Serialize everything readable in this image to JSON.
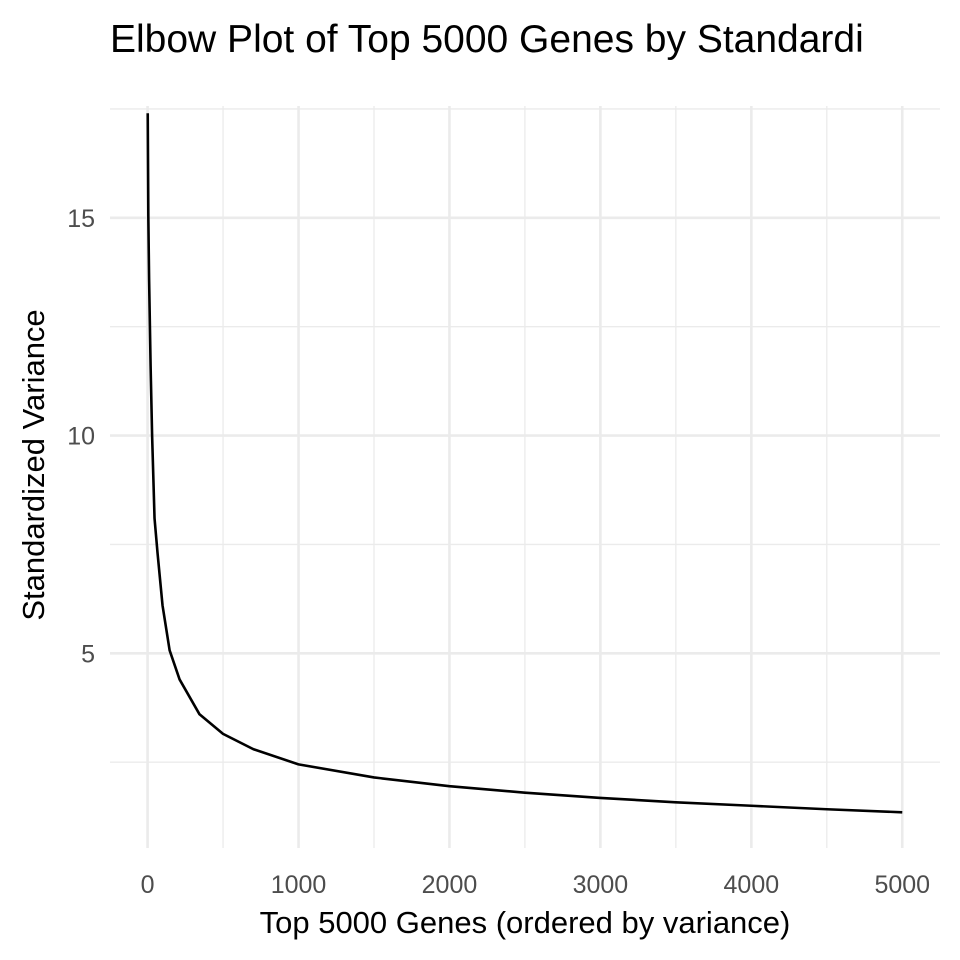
{
  "chart_data": {
    "type": "line",
    "title": "Elbow Plot of Top 5000 Genes by Standardi",
    "xlabel": "Top 5000 Genes (ordered by variance)",
    "ylabel": "Standardized Variance",
    "x": [
      1,
      5,
      10,
      20,
      30,
      46,
      66,
      99,
      146,
      212,
      344,
      500,
      700,
      1000,
      1500,
      2000,
      2500,
      3000,
      3500,
      4000,
      4500,
      5000
    ],
    "series": [
      {
        "name": "Standardized Variance",
        "color": "#000000",
        "values": [
          17.4,
          15.0,
          13.6,
          11.6,
          10.0,
          8.1,
          7.3,
          6.1,
          5.07,
          4.4,
          3.6,
          3.15,
          2.8,
          2.45,
          2.15,
          1.95,
          1.8,
          1.68,
          1.58,
          1.5,
          1.42,
          1.35
        ]
      }
    ],
    "xlim": [
      -249,
      5250
    ],
    "ylim": [
      0.53,
      18.21
    ],
    "xticks": [
      0,
      1000,
      2000,
      3000,
      4000,
      5000
    ],
    "yticks": [
      5,
      10,
      15
    ],
    "x_minor_ticks": [
      500,
      1500,
      2500,
      3500,
      4500
    ],
    "y_minor_ticks": [
      2.5,
      7.5,
      12.5,
      17.5
    ],
    "grid": true,
    "grid_color": "#ebebeb"
  }
}
